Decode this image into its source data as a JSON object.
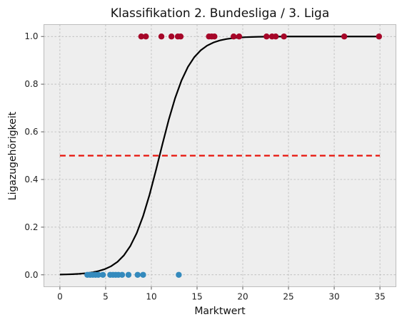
{
  "chart_data": {
    "type": "scatter",
    "title": "Klassifikation 2. Bundesliga / 3. Liga",
    "xlabel": "Marktwert",
    "ylabel": "Ligazugehörigkeit",
    "xlim": [
      -1.75,
      36.75
    ],
    "ylim": [
      -0.05,
      1.05
    ],
    "xticks": [
      0,
      5,
      10,
      15,
      20,
      25,
      30,
      35
    ],
    "yticks": [
      0.0,
      0.2,
      0.4,
      0.6,
      0.8,
      1.0
    ],
    "grid": true,
    "colors": {
      "class_0": "#348abd",
      "class_1": "#a60628",
      "logistic_curve": "#000000",
      "threshold": "#e8130a",
      "plot_background": "#eeeeee"
    },
    "series": [
      {
        "values_y": 0,
        "x": [
          3.0,
          3.3,
          3.6,
          3.9,
          4.2,
          4.7,
          5.5,
          5.8,
          6.1,
          6.4,
          6.8,
          7.5,
          8.5,
          9.1,
          13.0
        ]
      },
      {
        "values_y": 1,
        "x": [
          8.9,
          9.4,
          11.1,
          12.2,
          12.9,
          13.2,
          16.3,
          16.6,
          16.9,
          19.0,
          19.6,
          22.6,
          23.2,
          23.6,
          24.5,
          31.1,
          34.9
        ]
      }
    ],
    "logistic_curve": {
      "x0": 10.9,
      "k": 0.62,
      "xrange": [
        0,
        35
      ]
    },
    "threshold": {
      "y": 0.5,
      "xrange": [
        0,
        35
      ]
    }
  }
}
